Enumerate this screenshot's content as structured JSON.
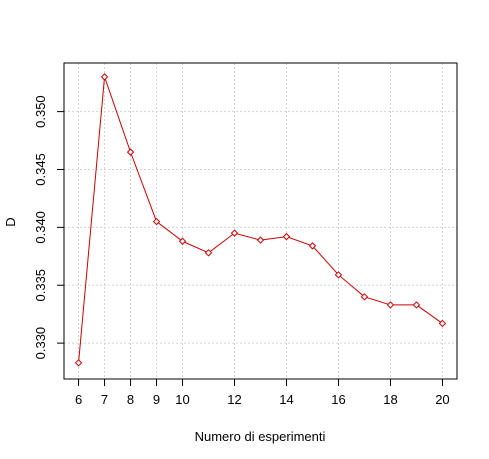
{
  "chart_data": {
    "type": "line",
    "title": "",
    "xlabel": "Numero di esperimenti",
    "ylabel": "D",
    "xlim": [
      5.44,
      20.56
    ],
    "ylim": [
      0.3269,
      0.3542
    ],
    "x_ticks": [
      6,
      7,
      8,
      9,
      10,
      12,
      14,
      16,
      18,
      20
    ],
    "y_ticks": [
      0.33,
      0.335,
      0.34,
      0.345,
      0.35
    ],
    "y_tick_labels": [
      "0.330",
      "0.335",
      "0.340",
      "0.345",
      "0.350"
    ],
    "grid": true,
    "legend": "none",
    "series": [
      {
        "x": [
          6,
          7,
          8,
          9,
          10,
          11,
          12,
          13,
          14,
          15,
          16,
          17,
          18,
          19,
          20
        ],
        "values": [
          0.3283,
          0.353,
          0.3465,
          0.3405,
          0.3388,
          0.3378,
          0.3395,
          0.3389,
          0.3392,
          0.3384,
          0.3359,
          0.334,
          0.3333,
          0.3333,
          0.3317
        ],
        "color": "#cc0000"
      }
    ]
  }
}
